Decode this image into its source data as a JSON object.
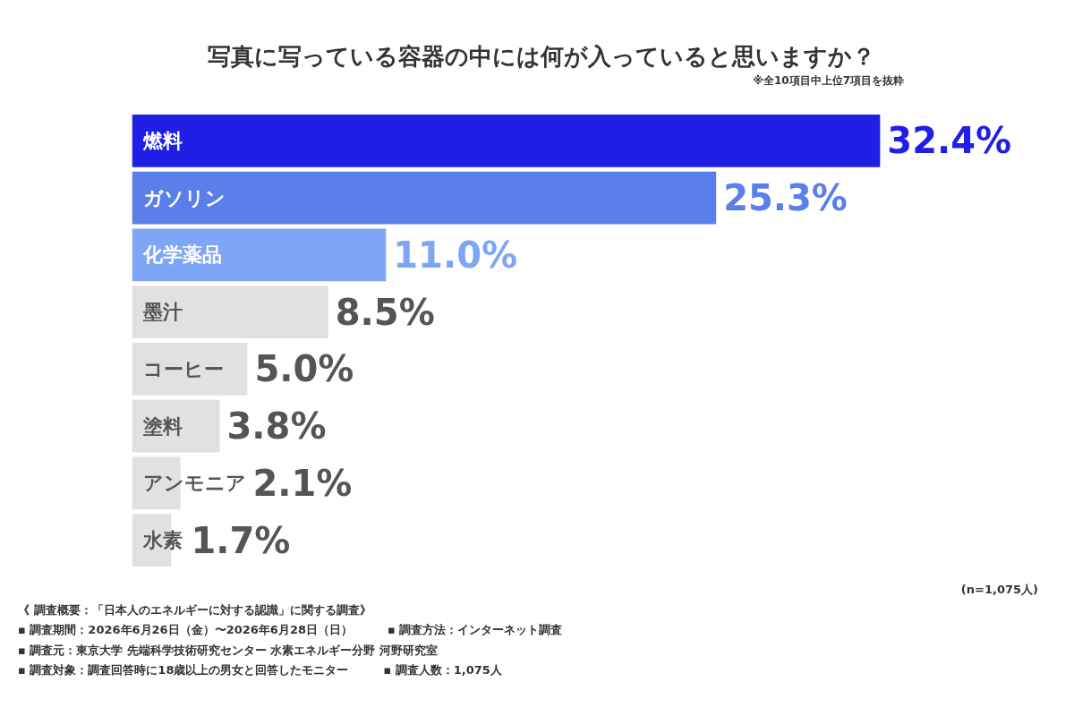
{
  "chart_data": {
    "type": "bar",
    "orientation": "horizontal",
    "title": "写真に写っている容器の中には何が入っていると思いますか？",
    "subtitle": "※全10項目中上位7項目を抜粋",
    "categories": [
      "燃料",
      "ガソリン",
      "化学薬品",
      "墨汁",
      "コーヒー",
      "塗料",
      "アンモニア",
      "水素"
    ],
    "values": [
      32.4,
      25.3,
      11.0,
      8.5,
      5.0,
      3.8,
      2.1,
      1.7
    ],
    "colors": [
      "#1f1fe6",
      "#5b7fea",
      "#7fa6f5",
      "#e3e0e3",
      "#e3e0e3",
      "#e3e0e3",
      "#e3e0e3",
      "#e3e0e3"
    ],
    "value_labels": [
      "32.4%",
      "25.3%",
      "11.0%",
      "8.5%",
      "5.0%",
      "3.8%",
      "2.1%",
      "1.7%"
    ],
    "annotations": [
      "(n=1,075人)",
      "《 調査概要：「日本人のエネルギーに対する認識」に関する調査》",
      "▪ 調査期間：2026年6月26日（金）〜2026年6月28日（日）　　　▪ 調査方法：インターネット調査",
      "▪ 調査元：東京大学 先端科学技術研究センター 水素エネルギー分野 河野研究室",
      "▪ 調査対象：調査回答時に18歳以上の男女と回答したモニター　　　▪ 調査人数：1,075人"
    ]
  }
}
